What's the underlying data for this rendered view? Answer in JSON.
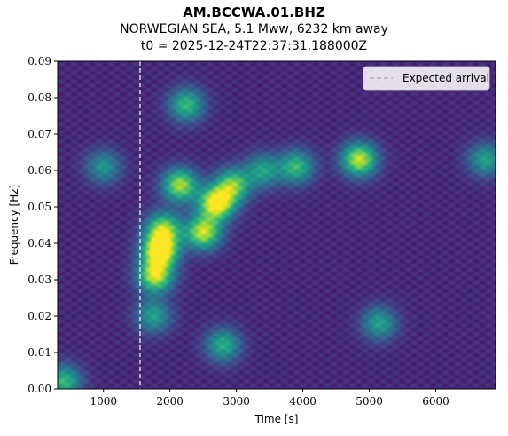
{
  "title": {
    "line1": "AM.BCCWA.01.BHZ",
    "line2": "NORWEGIAN SEA, 5.1 Mww, 6232 km away",
    "line3": "t0 = 2025-12-24T22:37:31.188000Z"
  },
  "chart_data": {
    "type": "heatmap",
    "colormap": "viridis",
    "xlabel": "Time [s]",
    "ylabel": "Frequency [Hz]",
    "xlim": [
      310,
      6900
    ],
    "ylim": [
      0.0,
      0.09
    ],
    "xticks": [
      1000,
      2000,
      3000,
      4000,
      5000,
      6000
    ],
    "xtick_labels": [
      "1000",
      "2000",
      "3000",
      "4000",
      "5000",
      "6000"
    ],
    "yticks": [
      0.0,
      0.01,
      0.02,
      0.03,
      0.04,
      0.05,
      0.06,
      0.07,
      0.08,
      0.09
    ],
    "ytick_labels": [
      "0.00",
      "0.01",
      "0.02",
      "0.03",
      "0.04",
      "0.05",
      "0.06",
      "0.07",
      "0.08",
      "0.09"
    ],
    "expected_arrival": 1550,
    "legend": {
      "label": "Expected arrival",
      "placement": "top-right"
    },
    "energy_blobs": [
      {
        "t": 1850,
        "f": 0.038,
        "amp": 1.0
      },
      {
        "t": 1780,
        "f": 0.031,
        "amp": 0.8
      },
      {
        "t": 1900,
        "f": 0.044,
        "amp": 0.7
      },
      {
        "t": 2700,
        "f": 0.051,
        "amp": 0.95
      },
      {
        "t": 2500,
        "f": 0.043,
        "amp": 0.8
      },
      {
        "t": 2150,
        "f": 0.056,
        "amp": 0.75
      },
      {
        "t": 2950,
        "f": 0.056,
        "amp": 0.65
      },
      {
        "t": 4850,
        "f": 0.063,
        "amp": 0.8
      },
      {
        "t": 3900,
        "f": 0.061,
        "amp": 0.55
      },
      {
        "t": 2250,
        "f": 0.078,
        "amp": 0.55
      },
      {
        "t": 2800,
        "f": 0.012,
        "amp": 0.5
      },
      {
        "t": 5150,
        "f": 0.018,
        "amp": 0.45
      },
      {
        "t": 1750,
        "f": 0.02,
        "amp": 0.45
      },
      {
        "t": 400,
        "f": 0.002,
        "amp": 0.55
      },
      {
        "t": 6750,
        "f": 0.063,
        "amp": 0.45
      },
      {
        "t": 1000,
        "f": 0.061,
        "amp": 0.4
      },
      {
        "t": 3400,
        "f": 0.06,
        "amp": 0.45
      }
    ]
  }
}
